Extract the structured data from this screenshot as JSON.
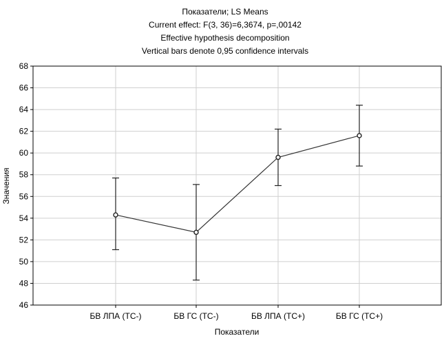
{
  "chart_data": {
    "type": "line",
    "title_lines": [
      "Показатели; LS Means",
      "Current effect: F(3, 36)=6,3674, p=,00142",
      "Effective hypothesis decomposition",
      "Vertical bars denote 0,95 confidence intervals"
    ],
    "xlabel": "Показатели",
    "ylabel": "Значения",
    "categories": [
      "БВ ЛПА (ТС-)",
      "БВ ГС (ТС-)",
      "БВ ЛПА (ТС+)",
      "БВ ГС (ТС+)"
    ],
    "series": [
      {
        "values": [
          54.3,
          52.7,
          59.6,
          61.6
        ],
        "ci_lower": [
          51.1,
          48.3,
          57.0,
          58.8
        ],
        "ci_upper": [
          57.7,
          57.1,
          62.2,
          64.4
        ]
      }
    ],
    "ylim": [
      46,
      68
    ],
    "y_ticks": [
      46,
      48,
      50,
      52,
      54,
      56,
      58,
      60,
      62,
      64,
      66,
      68
    ],
    "grid": true,
    "colors": {
      "line": "#333333",
      "grid": "#cfcfcf",
      "marker_fill": "#ffffff"
    }
  }
}
